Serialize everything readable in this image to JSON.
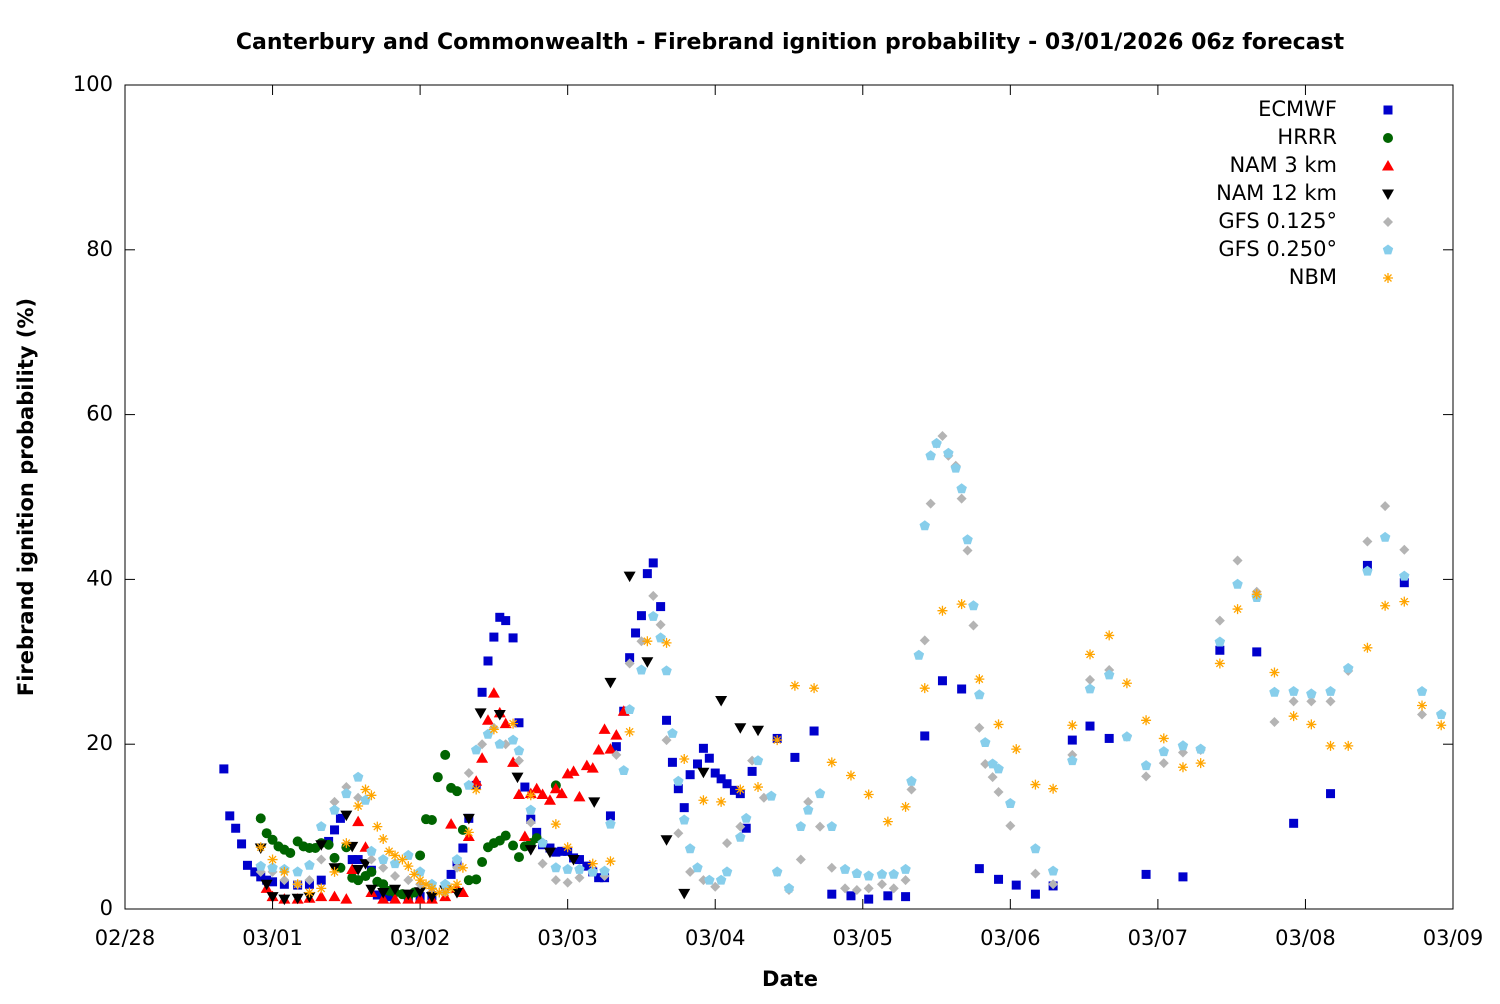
{
  "chart_data": {
    "type": "scatter",
    "title": "Canterbury and Commonwealth - Firebrand ignition probability - 03/01/2026 06z forecast",
    "x_label": "Date",
    "y_label": "Firebrand ignition probability (%)",
    "xlim": [
      0,
      9
    ],
    "ylim": [
      0,
      100
    ],
    "xticks": [
      {
        "value": 0,
        "label": "02/28"
      },
      {
        "value": 1,
        "label": "03/01"
      },
      {
        "value": 2,
        "label": "03/02"
      },
      {
        "value": 3,
        "label": "03/03"
      },
      {
        "value": 4,
        "label": "03/04"
      },
      {
        "value": 5,
        "label": "03/05"
      },
      {
        "value": 6,
        "label": "03/06"
      },
      {
        "value": 7,
        "label": "03/07"
      },
      {
        "value": 8,
        "label": "03/08"
      },
      {
        "value": 9,
        "label": "03/09"
      }
    ],
    "yticks": [
      0,
      20,
      40,
      60,
      80,
      100
    ],
    "grid": false,
    "legend": "top-right",
    "series": [
      {
        "name": "ECMWF",
        "color": "#0000cc",
        "marker": "square",
        "x": [
          0.67,
          0.71,
          0.75,
          0.79,
          0.83,
          0.88,
          0.92,
          0.96,
          1.0,
          1.08,
          1.17,
          1.25,
          1.33,
          1.38,
          1.42,
          1.46,
          1.54,
          1.58,
          1.67,
          1.71,
          1.79,
          1.92,
          2.0,
          2.08,
          2.21,
          2.25,
          2.29,
          2.33,
          2.38,
          2.42,
          2.46,
          2.5,
          2.54,
          2.58,
          2.63,
          2.67,
          2.71,
          2.75,
          2.79,
          2.83,
          2.88,
          2.92,
          2.96,
          3.0,
          3.04,
          3.08,
          3.13,
          3.17,
          3.21,
          3.25,
          3.29,
          3.33,
          3.38,
          3.42,
          3.46,
          3.5,
          3.54,
          3.58,
          3.63,
          3.67,
          3.71,
          3.75,
          3.79,
          3.83,
          3.88,
          3.92,
          3.96,
          4.0,
          4.04,
          4.08,
          4.13,
          4.17,
          4.21,
          4.25,
          4.42,
          4.54,
          4.67,
          4.79,
          4.92,
          5.04,
          5.17,
          5.29,
          5.42,
          5.54,
          5.67,
          5.79,
          5.92,
          6.04,
          6.17,
          6.29,
          6.42,
          6.54,
          6.67,
          6.92,
          7.17,
          7.42,
          7.67,
          7.92,
          8.17,
          8.42,
          8.67
        ],
        "values": [
          17.0,
          11.3,
          9.8,
          7.9,
          5.3,
          4.5,
          3.9,
          3.5,
          3.3,
          3.0,
          2.9,
          3.0,
          3.5,
          8.2,
          9.6,
          11.0,
          6.0,
          6.0,
          4.7,
          1.7,
          1.5,
          1.5,
          1.5,
          1.6,
          4.2,
          5.7,
          7.4,
          11.0,
          15.0,
          26.3,
          30.1,
          33.0,
          35.4,
          35.0,
          32.9,
          22.6,
          14.8,
          10.9,
          9.3,
          7.8,
          7.4,
          6.9,
          7.0,
          7.0,
          6.2,
          6.0,
          5.2,
          4.5,
          3.8,
          3.8,
          11.3,
          19.7,
          24.0,
          30.5,
          33.5,
          35.6,
          40.7,
          42.0,
          36.7,
          22.9,
          17.8,
          14.6,
          12.3,
          16.3,
          17.6,
          19.5,
          18.3,
          16.5,
          15.8,
          15.2,
          14.4,
          14.0,
          9.8,
          16.7,
          20.7,
          18.4,
          21.6,
          1.8,
          1.6,
          1.2,
          1.6,
          1.5,
          21.0,
          27.7,
          26.7,
          4.9,
          3.6,
          2.9,
          1.8,
          2.8,
          20.5,
          22.2,
          20.7,
          4.2,
          3.9,
          31.4,
          31.2,
          10.4,
          14.0,
          41.7,
          39.6
        ]
      },
      {
        "name": "HRRR",
        "color": "#006400",
        "marker": "circle",
        "x": [
          0.92,
          0.96,
          1.0,
          1.04,
          1.08,
          1.12,
          1.17,
          1.21,
          1.25,
          1.29,
          1.33,
          1.38,
          1.42,
          1.46,
          1.5,
          1.54,
          1.58,
          1.63,
          1.67,
          1.71,
          1.75,
          1.79,
          1.83,
          1.88,
          1.92,
          1.96,
          2.0,
          2.04,
          2.08,
          2.12,
          2.17,
          2.21,
          2.25,
          2.29,
          2.33,
          2.38,
          2.42,
          2.46,
          2.5,
          2.54,
          2.58,
          2.63,
          2.67,
          2.71,
          2.75,
          2.79,
          2.92
        ],
        "values": [
          11.0,
          9.2,
          8.4,
          7.6,
          7.2,
          6.8,
          8.2,
          7.6,
          7.4,
          7.4,
          8.0,
          7.8,
          6.2,
          5.0,
          7.5,
          3.8,
          3.5,
          4.0,
          4.5,
          3.3,
          3.0,
          2.2,
          2.0,
          1.8,
          1.6,
          2.0,
          6.5,
          10.9,
          10.8,
          16.0,
          18.7,
          14.7,
          14.3,
          9.6,
          3.5,
          3.6,
          5.7,
          7.5,
          8.0,
          8.3,
          8.9,
          7.7,
          6.3,
          7.6,
          8.0,
          8.6,
          15.0
        ]
      },
      {
        "name": "NAM 3 km",
        "color": "#ff0000",
        "marker": "triangle-up",
        "x": [
          0.96,
          1.0,
          1.08,
          1.17,
          1.25,
          1.33,
          1.42,
          1.5,
          1.54,
          1.58,
          1.63,
          1.67,
          1.75,
          1.83,
          1.92,
          2.0,
          2.08,
          2.17,
          2.21,
          2.25,
          2.29,
          2.33,
          2.38,
          2.42,
          2.46,
          2.5,
          2.54,
          2.58,
          2.63,
          2.67,
          2.71,
          2.75,
          2.79,
          2.83,
          2.88,
          2.92,
          2.96,
          3.0,
          3.04,
          3.08,
          3.13,
          3.17,
          3.21,
          3.25,
          3.29,
          3.33,
          3.38
        ],
        "values": [
          2.5,
          1.5,
          1.2,
          1.2,
          1.3,
          1.5,
          1.5,
          1.2,
          4.8,
          10.6,
          7.5,
          2.0,
          1.2,
          1.2,
          1.2,
          1.2,
          1.2,
          1.5,
          10.3,
          2.5,
          2.0,
          8.8,
          15.5,
          18.3,
          22.9,
          26.2,
          23.8,
          22.5,
          17.8,
          13.9,
          8.8,
          14.0,
          14.6,
          13.9,
          13.2,
          14.6,
          14.0,
          16.4,
          16.7,
          13.6,
          17.4,
          17.1,
          19.3,
          21.8,
          19.4,
          21.1,
          24.0
        ]
      },
      {
        "name": "NAM 12 km",
        "color": "#000000",
        "marker": "triangle-down",
        "x": [
          0.92,
          0.96,
          1.0,
          1.08,
          1.17,
          1.25,
          1.33,
          1.42,
          1.5,
          1.54,
          1.58,
          1.63,
          1.67,
          1.75,
          1.83,
          1.92,
          2.0,
          2.08,
          2.17,
          2.25,
          2.33,
          2.41,
          2.54,
          2.66,
          2.75,
          2.88,
          3.04,
          3.18,
          3.29,
          3.42,
          3.54,
          3.67,
          3.79,
          3.92,
          4.04,
          4.17,
          4.29
        ],
        "values": [
          7.4,
          3.0,
          1.5,
          1.2,
          1.3,
          1.5,
          7.8,
          5.0,
          11.4,
          7.6,
          4.8,
          5.5,
          2.4,
          2.0,
          2.4,
          1.8,
          2.1,
          1.5,
          2.3,
          2.0,
          11.0,
          23.8,
          23.6,
          16.0,
          7.2,
          6.9,
          6.0,
          13.0,
          27.5,
          40.4,
          30.0,
          8.4,
          1.9,
          16.6,
          25.3,
          22.0,
          21.7
        ]
      },
      {
        "name": "GFS 0.125°",
        "color": "#b4b4b4",
        "marker": "diamond",
        "x": [
          0.92,
          1.0,
          1.08,
          1.17,
          1.25,
          1.33,
          1.42,
          1.5,
          1.58,
          1.67,
          1.75,
          1.83,
          1.92,
          2.0,
          2.08,
          2.17,
          2.25,
          2.33,
          2.42,
          2.5,
          2.58,
          2.67,
          2.75,
          2.83,
          2.92,
          3.0,
          3.08,
          3.17,
          3.25,
          3.33,
          3.42,
          3.5,
          3.58,
          3.63,
          3.67,
          3.75,
          3.83,
          3.92,
          4.0,
          4.08,
          4.17,
          4.25,
          4.33,
          4.42,
          4.5,
          4.58,
          4.63,
          4.71,
          4.79,
          4.88,
          4.96,
          5.04,
          5.13,
          5.21,
          5.29,
          5.33,
          5.42,
          5.46,
          5.5,
          5.54,
          5.58,
          5.63,
          5.67,
          5.71,
          5.75,
          5.79,
          5.83,
          5.88,
          5.92,
          6.0,
          6.17,
          6.29,
          6.42,
          6.54,
          6.67,
          6.79,
          6.92,
          7.04,
          7.17,
          7.29,
          7.42,
          7.54,
          7.67,
          7.79,
          7.92,
          8.04,
          8.17,
          8.29,
          8.42,
          8.54,
          8.67,
          8.79,
          8.92
        ],
        "values": [
          4.5,
          4.5,
          3.5,
          3.0,
          3.5,
          6.0,
          13.0,
          14.8,
          13.5,
          6.0,
          5.0,
          4.0,
          3.5,
          3.0,
          2.5,
          2.0,
          5.0,
          16.5,
          20.0,
          22.0,
          20.0,
          18.0,
          10.5,
          5.5,
          3.5,
          3.2,
          3.8,
          4.5,
          4.0,
          18.7,
          29.8,
          32.5,
          38.0,
          34.5,
          20.5,
          9.2,
          4.5,
          3.5,
          2.7,
          8.0,
          10.0,
          18.0,
          13.5,
          4.5,
          2.3,
          6.0,
          13.0,
          10.0,
          5.0,
          2.5,
          2.3,
          2.5,
          3.0,
          2.5,
          3.5,
          14.5,
          32.6,
          49.2,
          56.5,
          57.4,
          55.0,
          53.8,
          49.8,
          43.5,
          34.4,
          22.0,
          17.6,
          16.0,
          14.2,
          10.1,
          4.3,
          3.0,
          18.7,
          27.8,
          29.0,
          20.9,
          16.1,
          17.7,
          19.0,
          19.3,
          35.0,
          42.3,
          38.5,
          22.7,
          25.2,
          25.2,
          25.2,
          28.9,
          44.6,
          48.9,
          43.6,
          23.6,
          23.6
        ]
      },
      {
        "name": "GFS 0.250°",
        "color": "#87ceeb",
        "marker": "pentagon",
        "x": [
          0.92,
          1.0,
          1.08,
          1.17,
          1.25,
          1.33,
          1.42,
          1.5,
          1.58,
          1.63,
          1.67,
          1.75,
          1.83,
          1.92,
          2.0,
          2.08,
          2.17,
          2.25,
          2.33,
          2.38,
          2.46,
          2.54,
          2.63,
          2.67,
          2.75,
          2.83,
          2.92,
          3.0,
          3.08,
          3.17,
          3.25,
          3.29,
          3.38,
          3.42,
          3.5,
          3.58,
          3.63,
          3.67,
          3.71,
          3.75,
          3.79,
          3.83,
          3.88,
          3.96,
          4.04,
          4.08,
          4.17,
          4.21,
          4.29,
          4.38,
          4.42,
          4.5,
          4.58,
          4.63,
          4.71,
          4.79,
          4.88,
          4.96,
          5.04,
          5.13,
          5.21,
          5.29,
          5.33,
          5.38,
          5.42,
          5.46,
          5.5,
          5.58,
          5.63,
          5.67,
          5.71,
          5.75,
          5.79,
          5.83,
          5.88,
          5.92,
          6.0,
          6.17,
          6.29,
          6.42,
          6.54,
          6.67,
          6.79,
          6.92,
          7.04,
          7.17,
          7.29,
          7.42,
          7.54,
          7.67,
          7.79,
          7.92,
          8.04,
          8.17,
          8.29,
          8.42,
          8.54,
          8.67,
          8.79,
          8.92
        ],
        "values": [
          5.2,
          5.0,
          4.8,
          4.5,
          5.3,
          10.0,
          12.0,
          14.0,
          16.0,
          13.2,
          7.0,
          6.0,
          5.5,
          6.5,
          4.5,
          3.0,
          3.0,
          6.0,
          15.0,
          19.3,
          21.2,
          20.0,
          20.5,
          19.2,
          12.0,
          8.0,
          5.0,
          4.8,
          4.8,
          4.5,
          4.6,
          10.3,
          16.8,
          24.2,
          29.0,
          35.5,
          32.9,
          28.9,
          21.3,
          15.5,
          10.8,
          7.3,
          5.0,
          3.5,
          3.5,
          4.5,
          8.7,
          11.0,
          18.0,
          13.7,
          4.5,
          2.5,
          10.0,
          12.0,
          14.0,
          10.0,
          4.8,
          4.3,
          4.0,
          4.2,
          4.2,
          4.8,
          15.5,
          30.8,
          46.5,
          55.0,
          56.5,
          55.3,
          53.5,
          51.0,
          44.8,
          36.8,
          26.0,
          20.2,
          17.6,
          17.0,
          12.8,
          7.3,
          4.6,
          18.0,
          26.7,
          28.4,
          20.9,
          17.4,
          19.1,
          19.8,
          19.4,
          32.4,
          39.4,
          37.8,
          26.3,
          26.4,
          26.1,
          26.4,
          29.2,
          41.0,
          45.1,
          40.4,
          26.4,
          23.6
        ]
      },
      {
        "name": "NBM",
        "color": "#ffa500",
        "marker": "asterisk",
        "x": [
          0.92,
          1.0,
          1.08,
          1.17,
          1.25,
          1.33,
          1.42,
          1.5,
          1.58,
          1.63,
          1.67,
          1.71,
          1.75,
          1.79,
          1.83,
          1.88,
          1.92,
          1.96,
          2.0,
          2.04,
          2.08,
          2.13,
          2.17,
          2.21,
          2.25,
          2.29,
          2.33,
          2.38,
          2.5,
          2.63,
          2.75,
          2.92,
          3.0,
          3.17,
          3.29,
          3.42,
          3.54,
          3.67,
          3.79,
          3.92,
          4.04,
          4.17,
          4.29,
          4.42,
          4.54,
          4.67,
          4.79,
          4.92,
          5.04,
          5.17,
          5.29,
          5.42,
          5.54,
          5.67,
          5.79,
          5.92,
          6.04,
          6.17,
          6.29,
          6.42,
          6.54,
          6.67,
          6.79,
          6.92,
          7.04,
          7.17,
          7.29,
          7.42,
          7.54,
          7.67,
          7.79,
          7.92,
          8.04,
          8.17,
          8.29,
          8.42,
          8.54,
          8.67,
          8.79,
          8.92
        ],
        "values": [
          7.5,
          6.0,
          4.5,
          3.0,
          2.0,
          2.5,
          4.5,
          8.0,
          12.5,
          14.5,
          13.8,
          10.0,
          8.5,
          7.0,
          6.5,
          6.0,
          5.2,
          4.2,
          3.5,
          3.0,
          2.5,
          2.0,
          2.0,
          2.5,
          3.0,
          5.0,
          9.3,
          14.5,
          21.8,
          22.5,
          13.8,
          10.3,
          7.5,
          5.5,
          5.8,
          21.5,
          32.5,
          32.3,
          18.2,
          13.2,
          13.0,
          14.5,
          14.8,
          20.5,
          27.1,
          26.8,
          17.8,
          16.2,
          13.9,
          10.6,
          12.4,
          26.8,
          36.2,
          37.0,
          27.9,
          22.4,
          19.4,
          15.1,
          14.6,
          22.3,
          30.9,
          33.2,
          27.4,
          22.9,
          20.7,
          17.2,
          17.7,
          29.8,
          36.4,
          38.2,
          28.7,
          23.4,
          22.4,
          19.8,
          19.8,
          31.7,
          36.8,
          37.3,
          24.7,
          22.3
        ]
      }
    ]
  }
}
